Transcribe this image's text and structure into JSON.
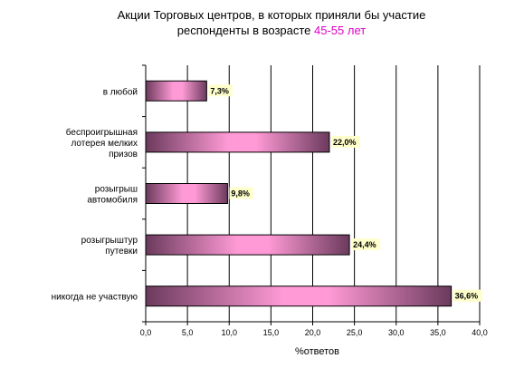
{
  "chart_data": {
    "type": "bar",
    "orientation": "horizontal",
    "title_line1": "Акции Торговых центров, в которых приняли бы участие",
    "title_line2_prefix": "респонденты в возрасте ",
    "title_line2_accent": "45-55 лет",
    "xlabel": "%ответов",
    "xlim": [
      0,
      40
    ],
    "xticks": [
      "0,0",
      "5,0",
      "10,0",
      "15,0",
      "20,0",
      "25,0",
      "30,0",
      "35,0",
      "40,0"
    ],
    "grid": true,
    "categories": [
      [
        "в любой"
      ],
      [
        "беспроигрышная",
        "лотерея мелких",
        "призов"
      ],
      [
        "розыгрыш",
        "автомобиля"
      ],
      [
        "розыгрыштур",
        "путевки"
      ],
      [
        "никогда не участвую"
      ]
    ],
    "values": [
      7.3,
      22.0,
      9.8,
      24.4,
      36.6
    ],
    "labels": [
      "7,3%",
      "22,0%",
      "9,8%",
      "24,4%",
      "36,6%"
    ]
  },
  "colors": {
    "accent": "#e000c8",
    "bar_dark": "#6b3a5c",
    "bar_light": "#ff9ad6",
    "label_bg": "#ffffcc",
    "grid": "#000000"
  }
}
